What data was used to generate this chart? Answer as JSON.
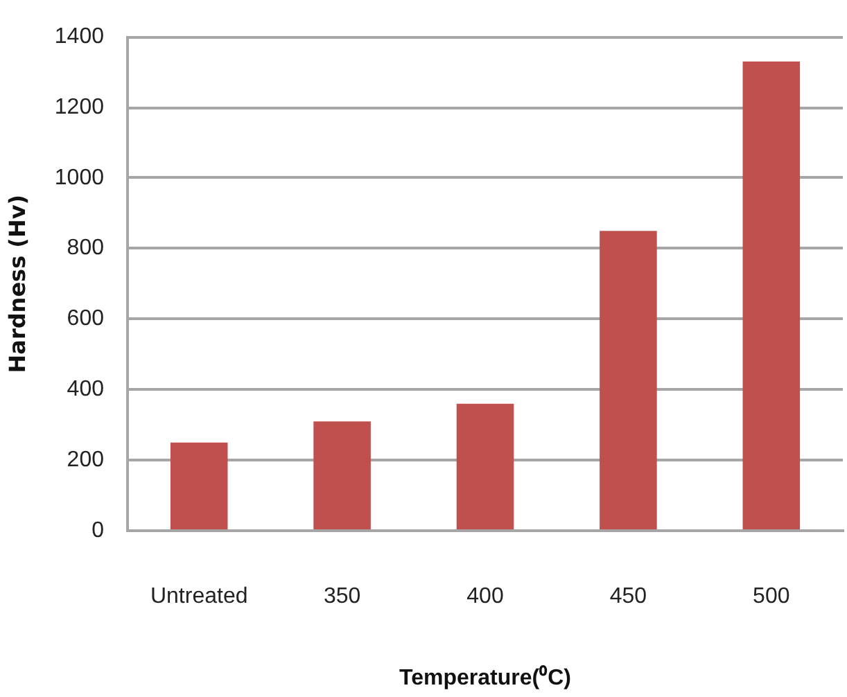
{
  "chart_data": {
    "type": "bar",
    "xlabel": "Temperature(⁰C)",
    "ylabel": "Hardness (Hv)",
    "categories": [
      "Untreated",
      "350",
      "400",
      "450",
      "500"
    ],
    "values": [
      250,
      310,
      360,
      850,
      1330
    ],
    "color": "#c0504d",
    "ylim": [
      0,
      1400
    ],
    "yticks": [
      0,
      200,
      400,
      600,
      800,
      1000,
      1200,
      1400
    ],
    "grid": "y"
  }
}
